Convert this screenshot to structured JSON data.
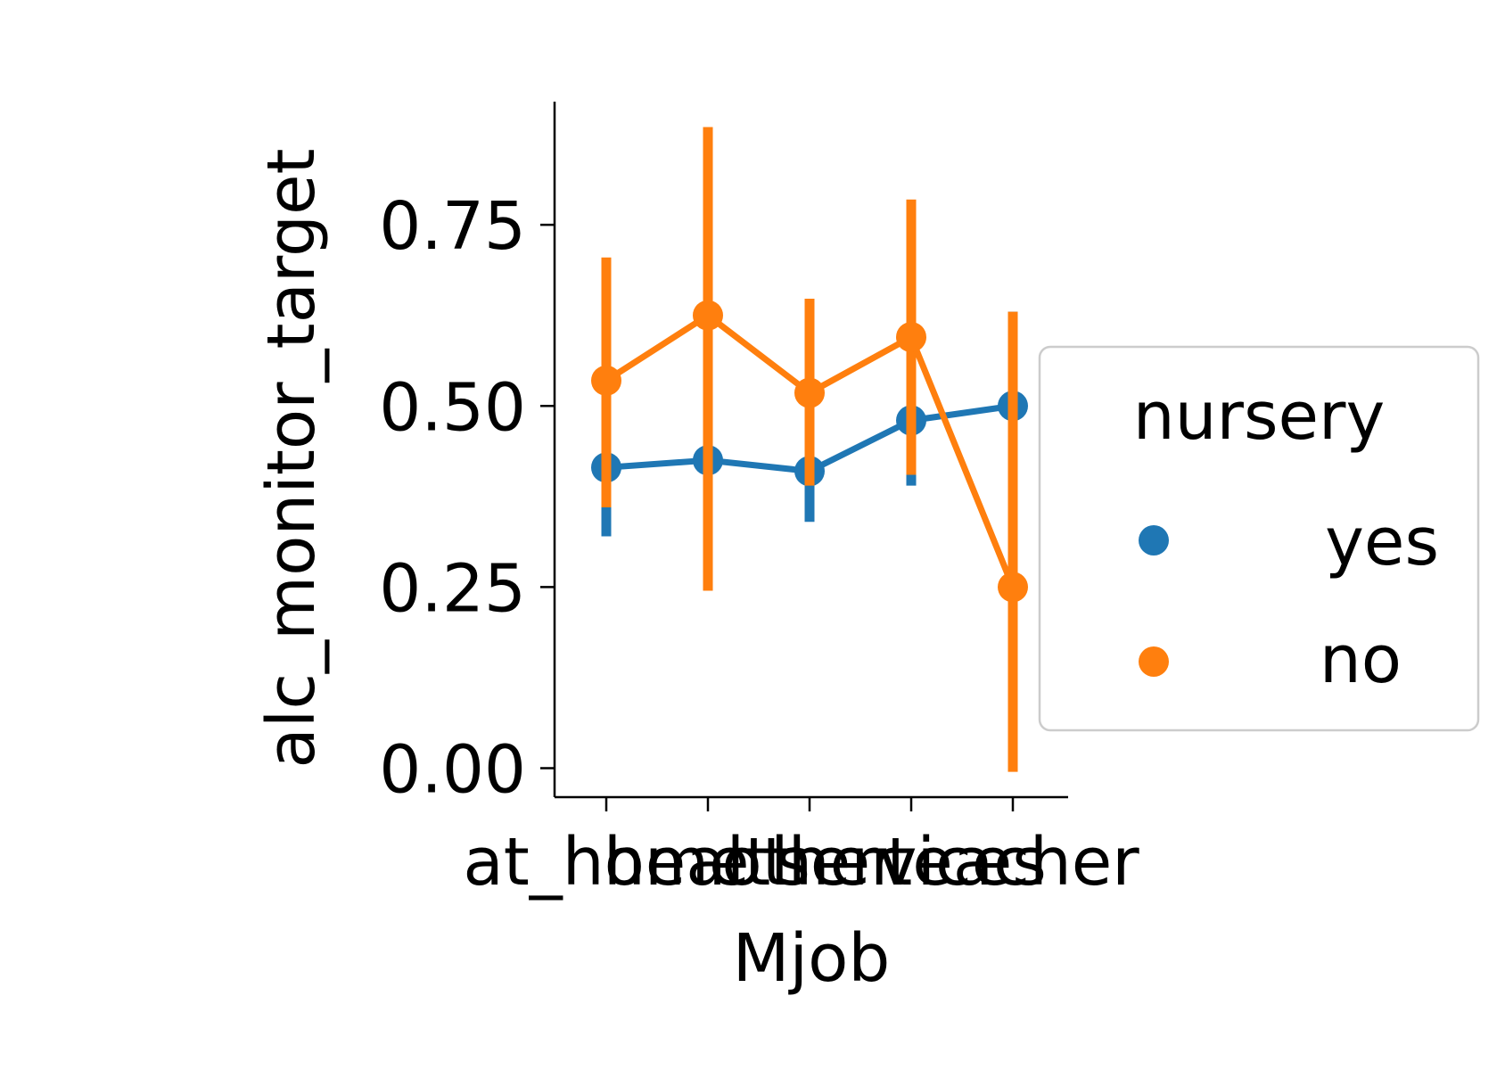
{
  "chart_data": {
    "type": "line",
    "xlabel": "Mjob",
    "ylabel": "alc_monitor_target",
    "categories": [
      "at_home",
      "health",
      "other",
      "services",
      "teacher"
    ],
    "ylim": [
      -0.04,
      0.92
    ],
    "yticks": [
      0.0,
      0.25,
      0.5,
      0.75
    ],
    "ytick_labels": [
      "0.00",
      "0.25",
      "0.50",
      "0.75"
    ],
    "grid": false,
    "legend": {
      "title": "nursery",
      "placement": "center-right",
      "entries": [
        "yes",
        "no"
      ]
    },
    "series": [
      {
        "name": "yes",
        "color": "#1f77b4",
        "values": [
          0.415,
          0.425,
          0.41,
          0.48,
          0.5
        ],
        "ci_low": [
          0.32,
          0.25,
          0.34,
          0.39,
          0.37
        ],
        "ci_high": [
          0.52,
          0.62,
          0.49,
          0.57,
          0.63
        ]
      },
      {
        "name": "no",
        "color": "#ff7f0e",
        "values": [
          0.535,
          0.625,
          0.518,
          0.595,
          0.25
        ],
        "ci_low": [
          0.36,
          0.245,
          0.39,
          0.405,
          -0.005
        ],
        "ci_high": [
          0.705,
          0.885,
          0.648,
          0.785,
          0.63
        ]
      }
    ]
  }
}
